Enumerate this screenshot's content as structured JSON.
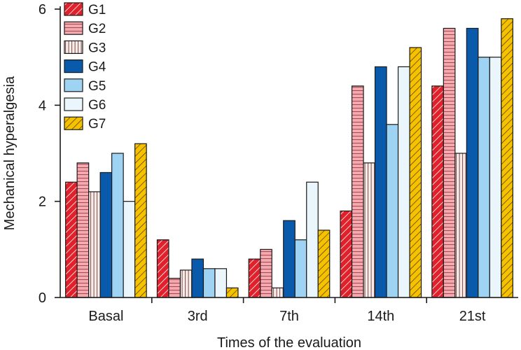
{
  "chart_data": {
    "type": "bar",
    "title": "",
    "xlabel": "Times of the evaluation",
    "ylabel": "Mechanical hyperalgesia",
    "ylim": [
      0,
      6
    ],
    "yticks": [
      0,
      2,
      4,
      6
    ],
    "categories": [
      "Basal",
      "3rd",
      "7th",
      "14th",
      "21st"
    ],
    "legend_position": "top-left",
    "series": [
      {
        "name": "G1",
        "color": "#e0202a",
        "pattern": "diagonal",
        "values": [
          2.4,
          1.2,
          0.8,
          1.8,
          4.4
        ]
      },
      {
        "name": "G2",
        "color": "#f2aab0",
        "pattern": "horizontal",
        "values": [
          2.8,
          0.4,
          1.0,
          4.4,
          5.6
        ]
      },
      {
        "name": "G3",
        "color": "#f6e6e2",
        "pattern": "vertical",
        "values": [
          2.2,
          0.57,
          0.2,
          2.8,
          3.0
        ]
      },
      {
        "name": "G4",
        "color": "#0a5aab",
        "pattern": "solid",
        "values": [
          2.6,
          0.8,
          1.6,
          4.8,
          5.6
        ]
      },
      {
        "name": "G5",
        "color": "#9fd3f3",
        "pattern": "solid",
        "values": [
          3.0,
          0.6,
          1.2,
          3.6,
          5.0
        ]
      },
      {
        "name": "G6",
        "color": "#eaf5fc",
        "pattern": "solid",
        "values": [
          2.0,
          0.6,
          2.4,
          4.8,
          5.0
        ]
      },
      {
        "name": "G7",
        "color": "#f6c200",
        "pattern": "diagonal-dark",
        "values": [
          3.2,
          0.2,
          1.4,
          5.2,
          5.8
        ]
      }
    ]
  }
}
